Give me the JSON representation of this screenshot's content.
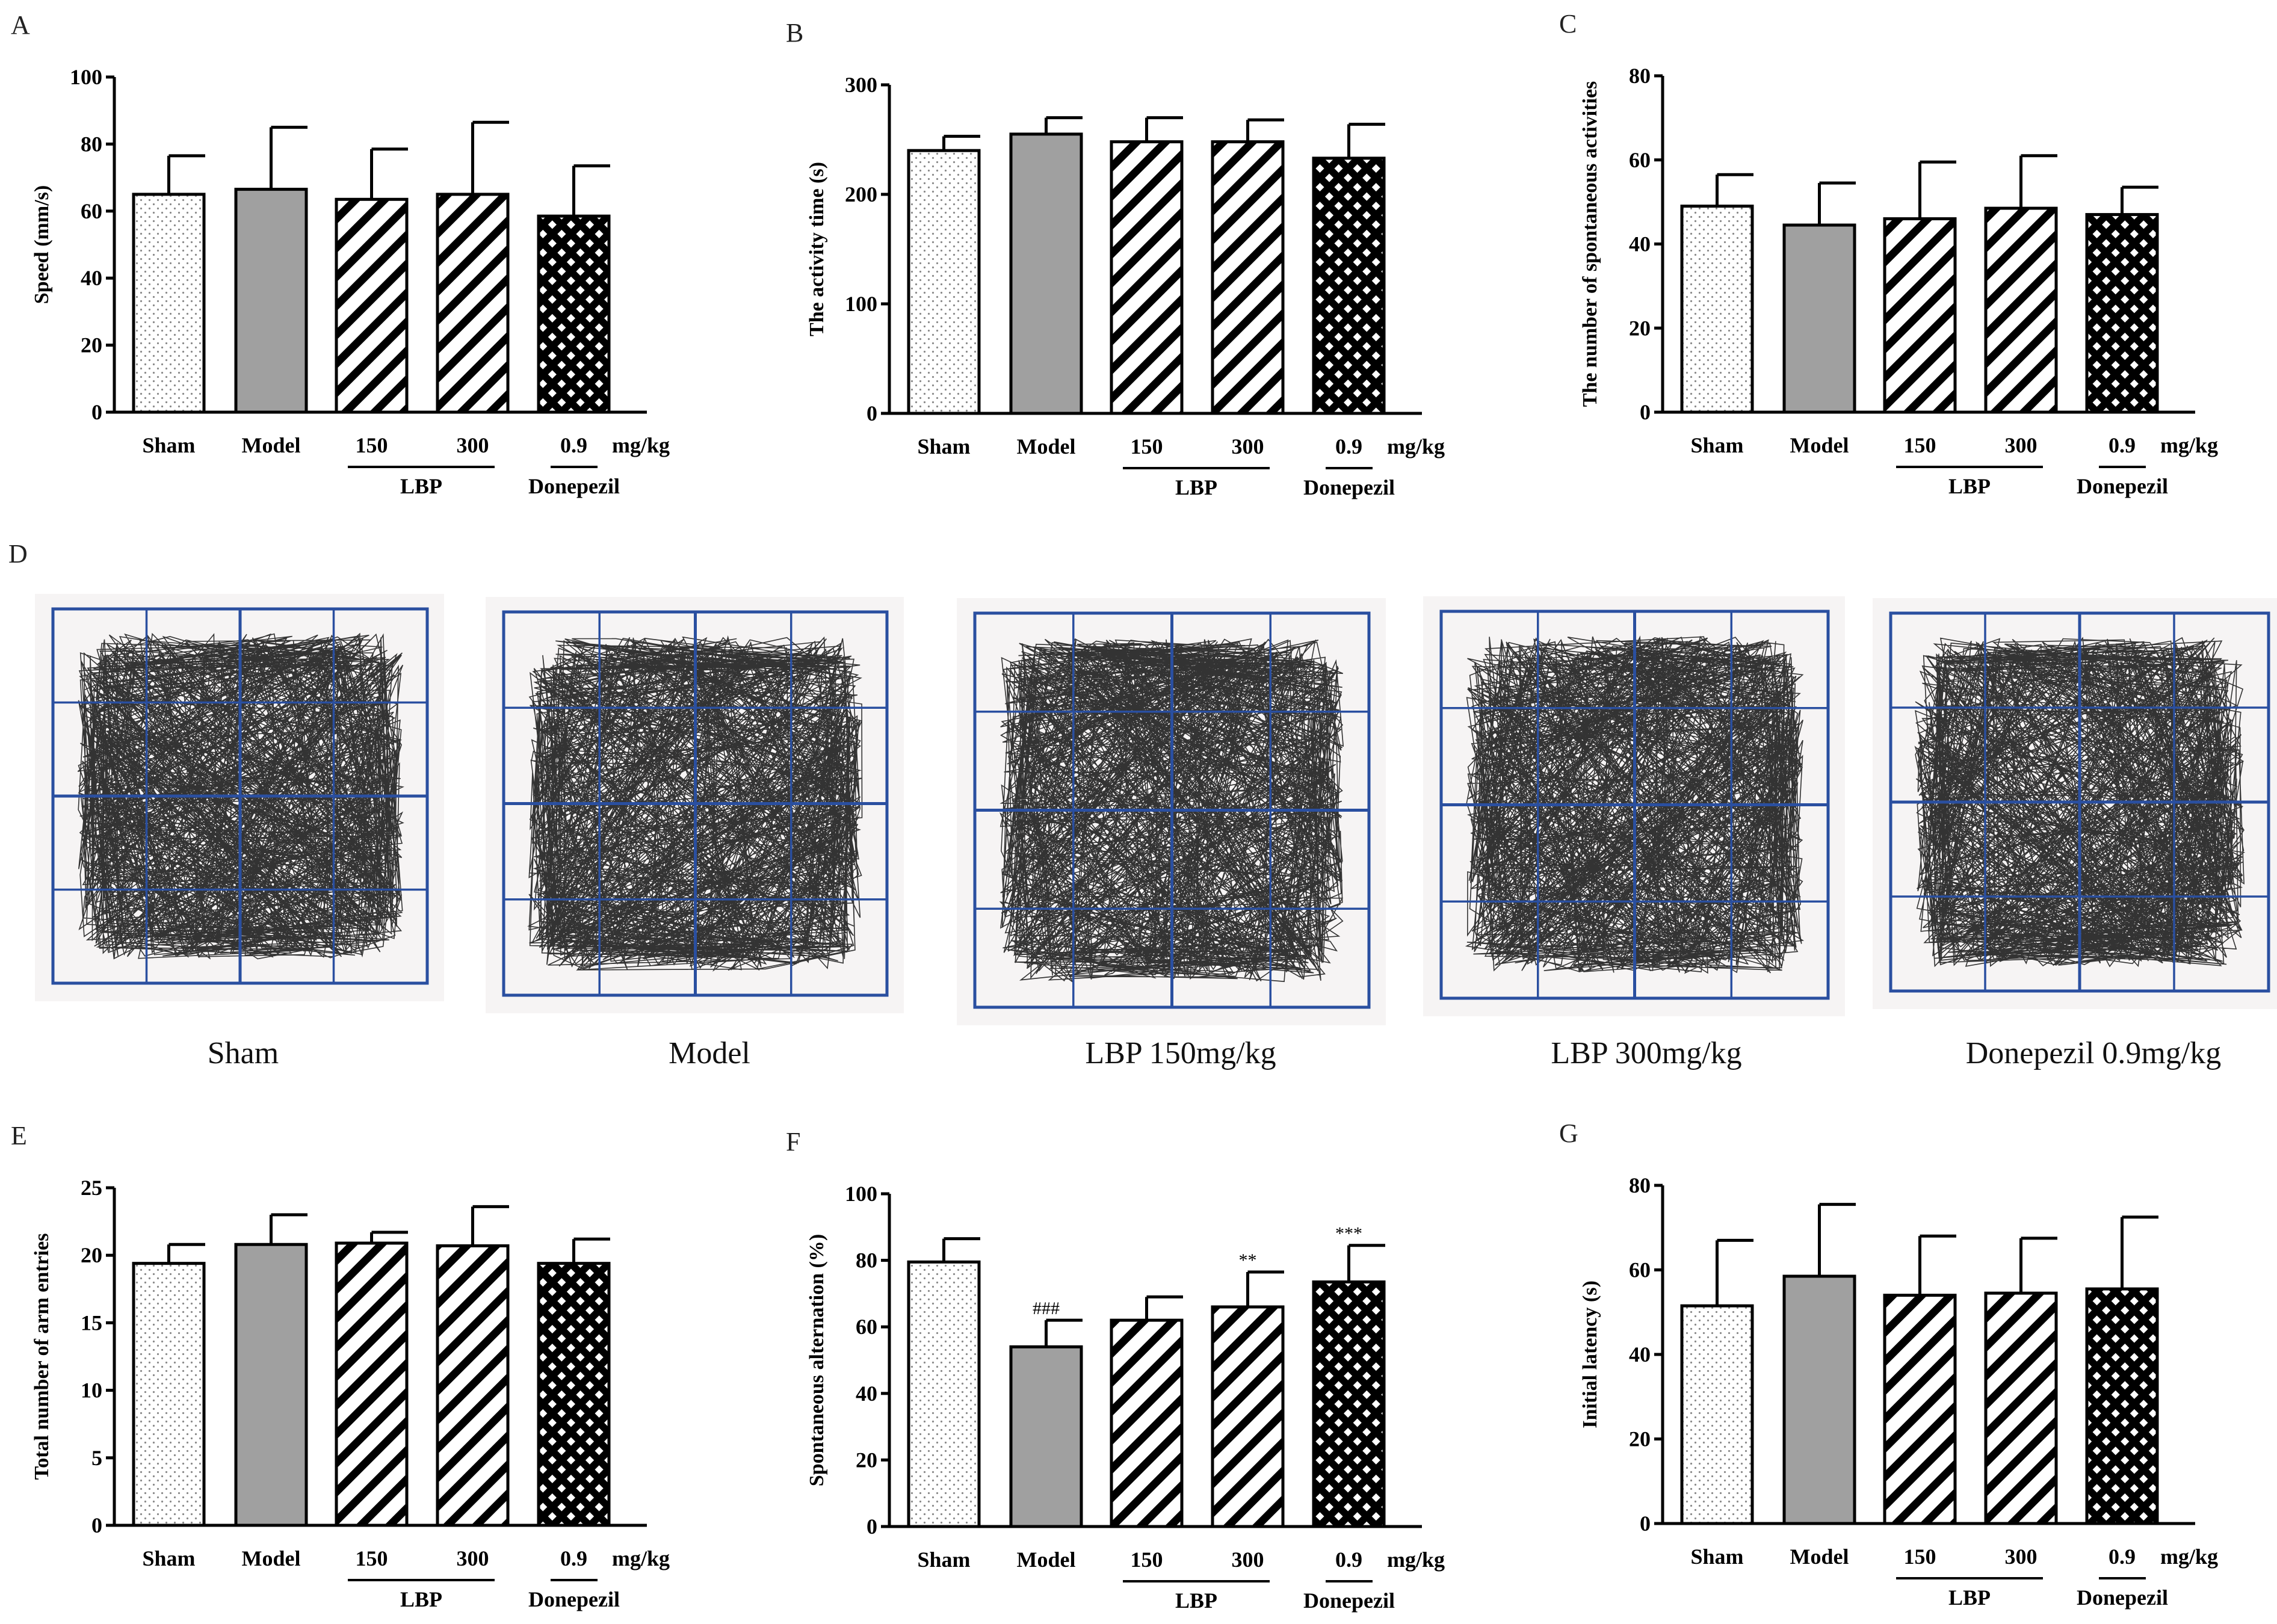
{
  "figure_d": {
    "letter": "D",
    "captions": [
      "Sham",
      "Model",
      "LBP 150mg/kg",
      "LBP 300mg/kg",
      "Donepezil 0.9mg/kg"
    ],
    "grid_color": "#2A4FA0",
    "arena_bg": "#F6F4F4",
    "track_color": "#111111"
  },
  "colors": {
    "model_fill": "#A0A0A0",
    "axis": "#000000"
  },
  "chart_data": [
    {
      "id": "A",
      "letter": "A",
      "type": "bar",
      "categories": [
        "Sham",
        "Model",
        "150",
        "300",
        "0.9"
      ],
      "patterns": [
        "dots",
        "solid",
        "diag",
        "diag",
        "cross"
      ],
      "values": [
        65,
        66.5,
        63.5,
        65,
        58.5
      ],
      "errors": [
        11.5,
        18.5,
        15,
        21.5,
        15
      ],
      "significance": [
        "",
        "",
        "",
        "",
        ""
      ],
      "ylabel": "Speed (mm/s)",
      "ylim": [
        0,
        100
      ],
      "yticks": [
        0,
        20,
        40,
        60,
        80,
        100
      ],
      "unit_label": "mg/kg",
      "group_labels": [
        "LBP",
        "Donepezil"
      ]
    },
    {
      "id": "B",
      "letter": "B",
      "type": "bar",
      "categories": [
        "Sham",
        "Model",
        "150",
        "300",
        "0.9"
      ],
      "patterns": [
        "dots",
        "solid",
        "diag",
        "diag",
        "cross"
      ],
      "values": [
        240,
        255,
        248,
        248,
        233
      ],
      "errors": [
        13,
        15,
        22,
        20,
        31
      ],
      "significance": [
        "",
        "",
        "",
        "",
        ""
      ],
      "ylabel": "The activity time (s)",
      "ylim": [
        0,
        300
      ],
      "yticks": [
        0,
        100,
        200,
        300
      ],
      "unit_label": "mg/kg",
      "group_labels": [
        "LBP",
        "Donepezil"
      ]
    },
    {
      "id": "C",
      "letter": "C",
      "type": "bar",
      "categories": [
        "Sham",
        "Model",
        "150",
        "300",
        "0.9"
      ],
      "patterns": [
        "dots",
        "solid",
        "diag",
        "diag",
        "cross"
      ],
      "values": [
        49,
        44.5,
        46,
        48.5,
        47
      ],
      "errors": [
        7.5,
        10,
        13.5,
        12.5,
        6.5
      ],
      "significance": [
        "",
        "",
        "",
        "",
        ""
      ],
      "ylabel": "The number of spontaneous activities",
      "ylim": [
        0,
        80
      ],
      "yticks": [
        0,
        20,
        40,
        60,
        80
      ],
      "unit_label": "mg/kg",
      "group_labels": [
        "LBP",
        "Donepezil"
      ]
    },
    {
      "id": "E",
      "letter": "E",
      "type": "bar",
      "categories": [
        "Sham",
        "Model",
        "150",
        "300",
        "0.9"
      ],
      "patterns": [
        "dots",
        "solid",
        "diag",
        "diag",
        "cross"
      ],
      "values": [
        19.4,
        20.8,
        20.9,
        20.7,
        19.4
      ],
      "errors": [
        1.4,
        2.2,
        0.8,
        2.9,
        1.8
      ],
      "significance": [
        "",
        "",
        "",
        "",
        ""
      ],
      "ylabel": "Total number of arm entries",
      "ylim": [
        0,
        25
      ],
      "yticks": [
        0,
        5,
        10,
        15,
        20,
        25
      ],
      "unit_label": "mg/kg",
      "group_labels": [
        "LBP",
        "Donepezil"
      ]
    },
    {
      "id": "F",
      "letter": "F",
      "type": "bar",
      "categories": [
        "Sham",
        "Model",
        "150",
        "300",
        "0.9"
      ],
      "patterns": [
        "dots",
        "solid",
        "diag",
        "diag",
        "cross"
      ],
      "values": [
        79.5,
        54,
        62,
        66,
        73.5
      ],
      "errors": [
        7,
        8,
        7,
        10.5,
        11
      ],
      "significance": [
        "",
        "###",
        "",
        "**",
        "***"
      ],
      "ylabel": "Spontaneous alternation (%)",
      "ylim": [
        0,
        100
      ],
      "yticks": [
        0,
        20,
        40,
        60,
        80,
        100
      ],
      "unit_label": "mg/kg",
      "group_labels": [
        "LBP",
        "Donepezil"
      ]
    },
    {
      "id": "G",
      "letter": "G",
      "type": "bar",
      "categories": [
        "Sham",
        "Model",
        "150",
        "300",
        "0.9"
      ],
      "patterns": [
        "dots",
        "solid",
        "diag",
        "diag",
        "cross"
      ],
      "values": [
        51.5,
        58.5,
        54,
        54.5,
        55.5
      ],
      "errors": [
        15.5,
        17,
        14,
        13,
        17
      ],
      "significance": [
        "",
        "",
        "",
        "",
        ""
      ],
      "ylabel": "Initial latency (s)",
      "ylim": [
        0,
        80
      ],
      "yticks": [
        0,
        20,
        40,
        60,
        80
      ],
      "unit_label": "mg/kg",
      "group_labels": [
        "LBP",
        "Donepezil"
      ]
    }
  ]
}
